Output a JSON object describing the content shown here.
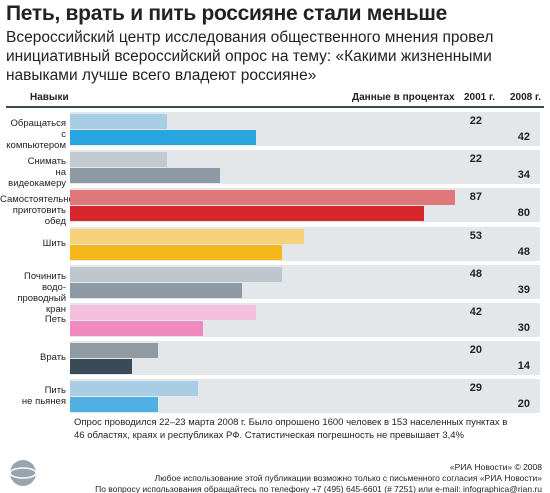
{
  "chart_data": {
    "type": "bar",
    "orientation": "horizontal",
    "title": "Петь, врать и пить россияне стали меньше",
    "subtitle": "Всероссийский центр исследования общественного мнения провел инициативный всероссийский опрос на тему: «Какими жизненными навыками лучше всего владеют россияне»",
    "category_header": "Навыки",
    "value_header": "Данные в процентах",
    "categories": [
      "Обращаться\nс компьютером",
      "Снимать\nна видеокамеру",
      "Самостоятельно\nприготовить обед",
      "Шить",
      "Починить водо-\nпроводный кран",
      "Петь",
      "Врать",
      "Пить\nне пьянея"
    ],
    "series": [
      {
        "name": "2001 г.",
        "colors": [
          "#a9cde4",
          "#c2c9d0",
          "#e0777a",
          "#f7d27a",
          "#bfc6cd",
          "#f4c0dc",
          "#8f9aa3",
          "#a9cde4"
        ],
        "values": [
          22,
          22,
          87,
          53,
          48,
          42,
          20,
          29
        ]
      },
      {
        "name": "2008 г.",
        "colors": [
          "#29a5e0",
          "#8d99a5",
          "#d6262c",
          "#f6b71a",
          "#8d99a5",
          "#ef89be",
          "#3a4a57",
          "#4fb0e4"
        ],
        "values": [
          42,
          34,
          80,
          48,
          39,
          30,
          14,
          20
        ]
      }
    ],
    "footnote": "Опрос проводился 22–23 марта 2008 г. Было опрошено 1600 человек в 153 населенных пунктах в 46 областях, краях и республиках РФ. Статистическая погрешность не превышает 3,4%",
    "credits": [
      "«РИА Новости» © 2008",
      "Любое использование этой публикации возможно только с письменного согласия «РИА Новости»",
      "По вопросу использования обращайтесь по телефону +7 (495) 645-6601 (# 7251) или e-mail: infographica@rian.ru"
    ]
  }
}
